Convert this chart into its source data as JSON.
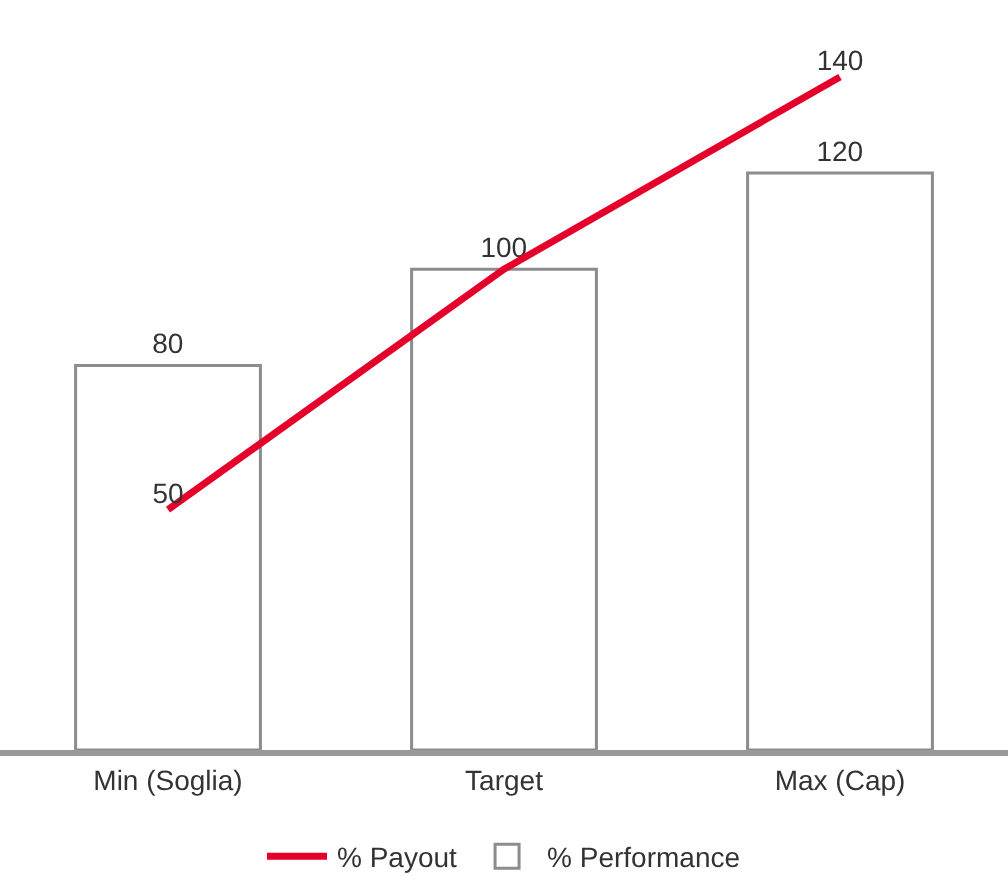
{
  "chart_data": {
    "type": "bar",
    "categories": [
      "Min (Soglia)",
      "Target",
      "Max (Cap)"
    ],
    "ylim": [
      0,
      156
    ],
    "grid": false,
    "legend": "bottom",
    "tick_labels": "x",
    "series": [
      {
        "name": "% Payout",
        "type": "line",
        "color": "#e4002b",
        "values": [
          50,
          100,
          140
        ],
        "value_labels": [
          "50",
          null,
          "140"
        ],
        "marker": "none",
        "line_style": "solid"
      },
      {
        "name": "% Performance",
        "color": "#ffffff",
        "values": [
          80,
          100,
          120
        ],
        "value_labels": [
          "80",
          "100",
          "120"
        ]
      }
    ]
  }
}
